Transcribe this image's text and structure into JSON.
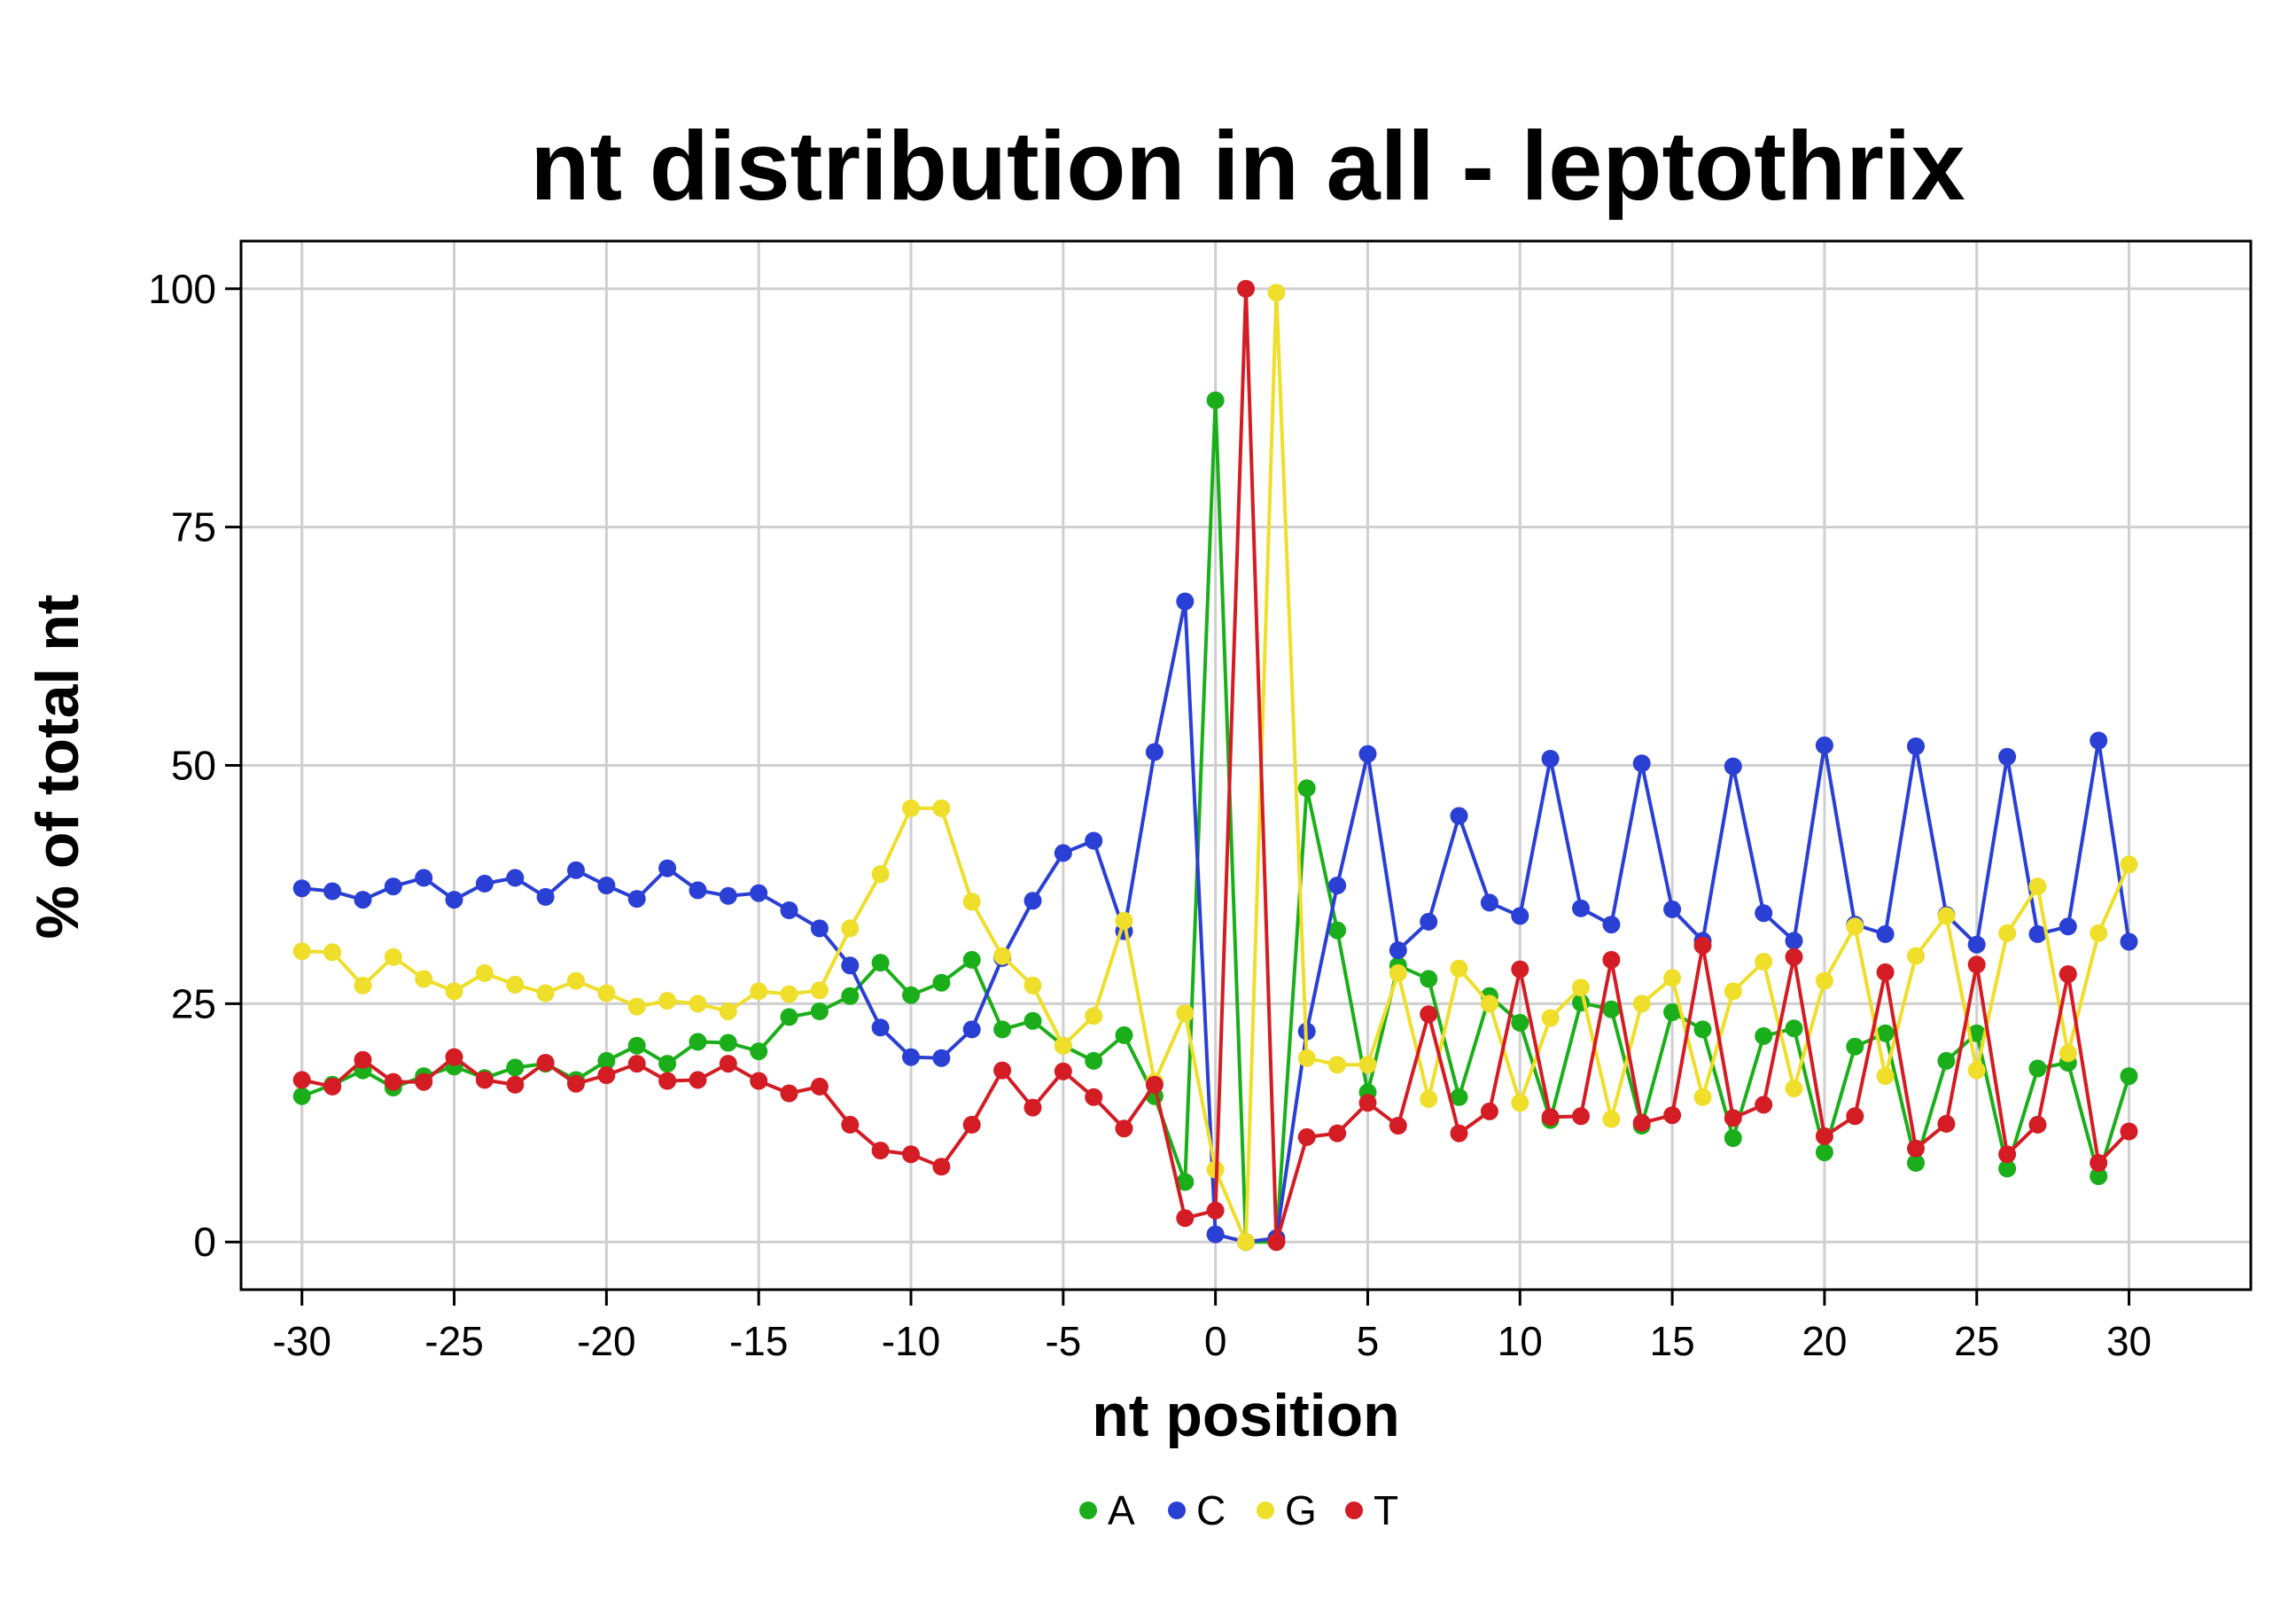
{
  "chart_data": {
    "type": "line",
    "title": "nt distribution in all - leptothrix",
    "xlabel": "nt position",
    "ylabel": "% of total nt",
    "xlim": [
      -32,
      34
    ],
    "ylim": [
      -5,
      105
    ],
    "xticks": [
      -30,
      -25,
      -20,
      -15,
      -10,
      -5,
      0,
      5,
      10,
      15,
      20,
      25,
      30
    ],
    "yticks": [
      0,
      25,
      50,
      75,
      100
    ],
    "grid": true,
    "legend": "bottom",
    "x": [
      -30,
      -29,
      -28,
      -27,
      -26,
      -25,
      -24,
      -23,
      -22,
      -21,
      -20,
      -19,
      -18,
      -17,
      -16,
      -15,
      -14,
      -13,
      -12,
      -11,
      -10,
      -9,
      -8,
      -7,
      -6,
      -5,
      -4,
      -3,
      -2,
      -1,
      0,
      1,
      2,
      3,
      4,
      5,
      6,
      7,
      8,
      9,
      10,
      11,
      12,
      13,
      14,
      15,
      16,
      17,
      18,
      19,
      20,
      21,
      22,
      23,
      24,
      25,
      26,
      27,
      28,
      29,
      30
    ],
    "series": [
      {
        "name": "A",
        "color": "#1aaf1a",
        "values": [
          15.3,
          16.5,
          18.0,
          16.2,
          17.4,
          18.4,
          17.2,
          18.3,
          18.7,
          17.0,
          19.0,
          20.6,
          18.7,
          21.0,
          20.9,
          20.0,
          23.6,
          24.2,
          25.8,
          29.3,
          25.9,
          27.2,
          29.6,
          22.3,
          23.2,
          20.6,
          19.0,
          21.7,
          15.3,
          6.3,
          88.3,
          0.0,
          0.0,
          47.6,
          32.7,
          15.7,
          29.0,
          27.6,
          15.2,
          25.8,
          23.0,
          12.8,
          25.1,
          24.4,
          12.2,
          24.1,
          22.3,
          10.9,
          21.6,
          22.4,
          9.4,
          20.5,
          21.9,
          8.3,
          19.0,
          21.9,
          7.7,
          18.2,
          18.8,
          6.9,
          17.4
        ]
      },
      {
        "name": "C",
        "color": "#2a3fd4",
        "values": [
          37.1,
          36.8,
          35.9,
          37.3,
          38.2,
          35.9,
          37.6,
          38.2,
          36.2,
          39.0,
          37.4,
          36.0,
          39.2,
          36.9,
          36.3,
          36.6,
          34.8,
          32.9,
          29.0,
          22.5,
          19.4,
          19.3,
          22.3,
          29.8,
          35.8,
          40.8,
          42.1,
          32.6,
          51.4,
          67.2,
          0.8,
          0.0,
          0.4,
          22.1,
          37.4,
          51.2,
          30.6,
          33.6,
          44.7,
          35.6,
          34.2,
          50.7,
          35.0,
          33.3,
          50.2,
          34.9,
          31.6,
          49.9,
          34.5,
          31.6,
          52.1,
          33.3,
          32.3,
          52.0,
          34.3,
          31.2,
          50.9,
          32.3,
          33.1,
          52.6,
          31.5
        ]
      },
      {
        "name": "G",
        "color": "#efde2a",
        "values": [
          30.5,
          30.4,
          26.9,
          29.9,
          27.6,
          26.3,
          28.2,
          27.0,
          26.1,
          27.4,
          26.1,
          24.7,
          25.3,
          25.0,
          24.2,
          26.3,
          26.0,
          26.4,
          32.9,
          38.6,
          45.5,
          45.5,
          35.7,
          30.0,
          26.9,
          20.6,
          23.7,
          33.7,
          16.8,
          24.0,
          7.6,
          0.0,
          99.6,
          19.3,
          18.6,
          18.6,
          28.2,
          15.0,
          28.7,
          25.0,
          14.6,
          23.5,
          26.7,
          12.9,
          25.0,
          27.7,
          15.2,
          26.3,
          29.4,
          16.1,
          27.4,
          33.1,
          17.4,
          30.0,
          34.2,
          18.0,
          32.4,
          37.3,
          19.8,
          32.4,
          39.6
        ]
      },
      {
        "name": "T",
        "color": "#d41c24",
        "values": [
          17.0,
          16.3,
          19.1,
          16.8,
          16.8,
          19.4,
          17.0,
          16.5,
          18.8,
          16.6,
          17.5,
          18.7,
          16.9,
          17.0,
          18.7,
          16.9,
          15.6,
          16.3,
          12.3,
          9.6,
          9.2,
          7.9,
          12.3,
          18.0,
          14.1,
          17.9,
          15.2,
          11.9,
          16.5,
          2.5,
          3.3,
          100.0,
          0.0,
          11.0,
          11.4,
          14.6,
          12.2,
          23.9,
          11.4,
          13.7,
          28.6,
          13.1,
          13.2,
          29.6,
          12.5,
          13.3,
          31.1,
          13.0,
          14.4,
          29.9,
          11.1,
          13.2,
          28.3,
          9.8,
          12.4,
          29.1,
          9.2,
          12.3,
          28.1,
          8.3,
          11.6
        ]
      }
    ]
  }
}
